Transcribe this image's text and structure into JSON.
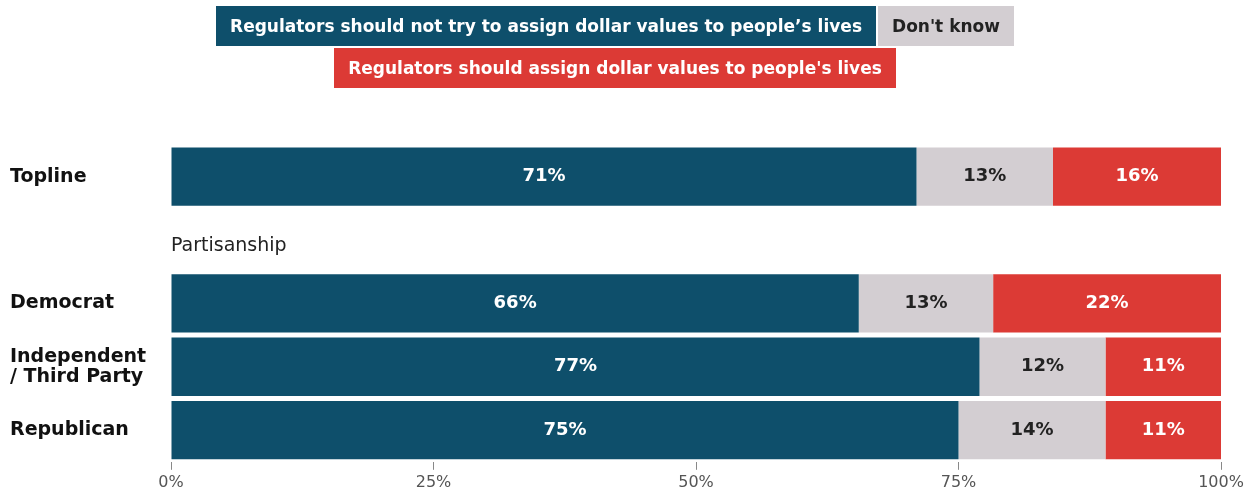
{
  "chart_data": {
    "type": "bar",
    "orientation": "horizontal",
    "stacked": true,
    "legend": "top",
    "categories": [
      "Topline",
      null,
      "Democrat",
      "Independent\n/ Third Party",
      "Republican"
    ],
    "series": [
      {
        "name": "Regulators should not try to assign dollar values to people’s lives",
        "color": "#0e4f6b",
        "values": [
          71,
          null,
          65.5,
          77,
          75
        ],
        "value_labels": [
          "71%",
          null,
          "66%",
          "77%",
          "75%"
        ]
      },
      {
        "name": "Don't know",
        "color": "#d3ced2",
        "values": [
          13,
          null,
          12.8,
          12,
          14
        ],
        "value_labels": [
          "13%",
          null,
          "13%",
          "12%",
          "14%"
        ]
      },
      {
        "name": "Regulators should assign dollar values to people's lives",
        "color": "#dc3a35",
        "values": [
          16,
          null,
          21.7,
          11,
          11
        ],
        "value_labels": [
          "16%",
          null,
          "22%",
          "11%",
          "11%"
        ]
      }
    ],
    "annotations": [
      "Partisanship"
    ],
    "xlim": [
      0,
      100
    ],
    "xticks": [
      {
        "value": 0,
        "label": "0%"
      },
      {
        "value": 25,
        "label": "25%"
      },
      {
        "value": 50,
        "label": "50%"
      },
      {
        "value": 75,
        "label": "75%"
      },
      {
        "value": 100,
        "label": "100%"
      }
    ],
    "grid": false
  }
}
